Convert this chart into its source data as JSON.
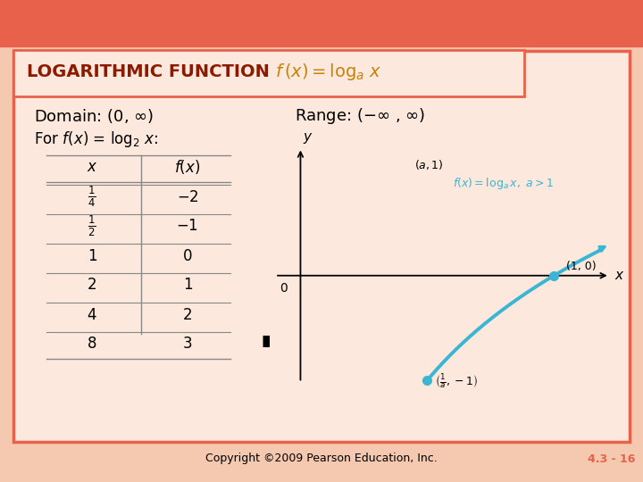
{
  "bg_color": "#f5c9b0",
  "header_bar_color": "#e8614a",
  "slide_bg": "#fce8dc",
  "border_color": "#e8614a",
  "title_text": "LOGARITHMIC FUNCTION",
  "title_color": "#8b1a00",
  "formula_color": "#c8820a",
  "copyright_text": "Copyright ©2009 Pearson Education, Inc.",
  "page_text": "4.3 - 16",
  "graph_curve_color": "#3ab5d4",
  "graph_dot_color": "#3ab5d4",
  "graph_annotation_color": "#3ab5d4"
}
